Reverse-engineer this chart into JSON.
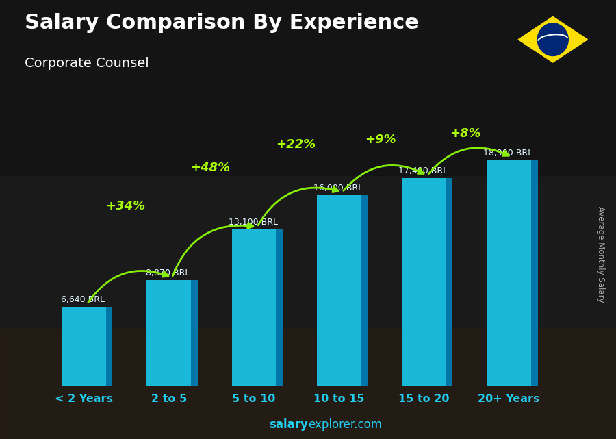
{
  "title": "Salary Comparison By Experience",
  "subtitle": "Corporate Counsel",
  "ylabel": "Average Monthly Salary",
  "footer_bold": "salary",
  "footer_normal": "explorer.com",
  "categories": [
    "< 2 Years",
    "2 to 5",
    "5 to 10",
    "10 to 15",
    "15 to 20",
    "20+ Years"
  ],
  "values": [
    6640,
    8870,
    13100,
    16000,
    17400,
    18900
  ],
  "value_labels": [
    "6,640 BRL",
    "8,870 BRL",
    "13,100 BRL",
    "16,000 BRL",
    "17,400 BRL",
    "18,900 BRL"
  ],
  "pct_labels": [
    "+34%",
    "+48%",
    "+22%",
    "+9%",
    "+8%"
  ],
  "bar_face_color": "#1ab8d8",
  "bar_side_color": "#0077a8",
  "bar_top_color": "#4dd6ef",
  "bg_color": "#1a1a2e",
  "title_color": "#ffffff",
  "subtitle_color": "#ffffff",
  "value_label_color": "#e0f7ff",
  "pct_color": "#aaff00",
  "arrow_color": "#88ee00",
  "footer_color": "#22ccee",
  "ylabel_color": "#aaaaaa",
  "cat_label_color": "#22ccee",
  "max_val": 22000,
  "bar_width": 0.52,
  "bar_depth_ratio": 0.15
}
